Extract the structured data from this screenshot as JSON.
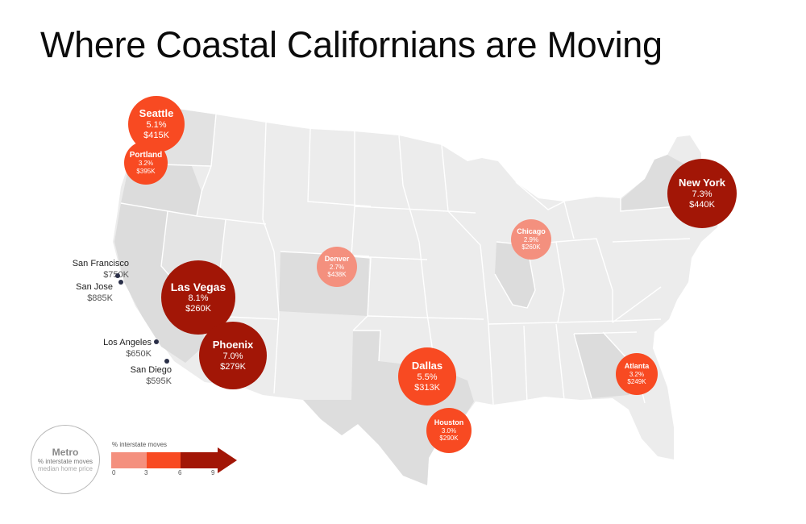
{
  "title": "Where Coastal Californians are Moving",
  "colors": {
    "low": "#f4907e",
    "mid": "#f84a22",
    "high": "#a21606",
    "land": "#ececec",
    "land_dark": "#dcdcdc",
    "state_border": "#ffffff",
    "source_dot": "#2a2f48"
  },
  "destinations": [
    {
      "name": "Seattle",
      "share": "5.1%",
      "price": "$415K",
      "share_value": 5.1,
      "tier": "mid"
    },
    {
      "name": "Portland",
      "share": "3.2%",
      "price": "$395K",
      "share_value": 3.2,
      "tier": "mid"
    },
    {
      "name": "New York",
      "share": "7.3%",
      "price": "$440K",
      "share_value": 7.3,
      "tier": "high"
    },
    {
      "name": "Chicago",
      "share": "2.9%",
      "price": "$260K",
      "share_value": 2.9,
      "tier": "low"
    },
    {
      "name": "Denver",
      "share": "2.7%",
      "price": "$438K",
      "share_value": 2.7,
      "tier": "low"
    },
    {
      "name": "Las Vegas",
      "share": "8.1%",
      "price": "$260K",
      "share_value": 8.1,
      "tier": "high"
    },
    {
      "name": "Phoenix",
      "share": "7.0%",
      "price": "$279K",
      "share_value": 7.0,
      "tier": "high"
    },
    {
      "name": "Dallas",
      "share": "5.5%",
      "price": "$313K",
      "share_value": 5.5,
      "tier": "mid"
    },
    {
      "name": "Houston",
      "share": "3.0%",
      "price": "$290K",
      "share_value": 3.0,
      "tier": "mid"
    },
    {
      "name": "Atlanta",
      "share": "3.2%",
      "price": "$249K",
      "share_value": 3.2,
      "tier": "mid"
    }
  ],
  "origins": [
    {
      "name": "San Francisco",
      "price": "$750K"
    },
    {
      "name": "San Jose",
      "price": "$885K"
    },
    {
      "name": "Los Angeles",
      "price": "$650K"
    },
    {
      "name": "San Diego",
      "price": "$595K"
    }
  ],
  "legend": {
    "metro": "Metro",
    "share_label": "% interstate moves",
    "price_label": "median home price",
    "scale_title": "% interstate moves",
    "scale_ticks": [
      "0",
      "3",
      "6",
      "9"
    ]
  }
}
